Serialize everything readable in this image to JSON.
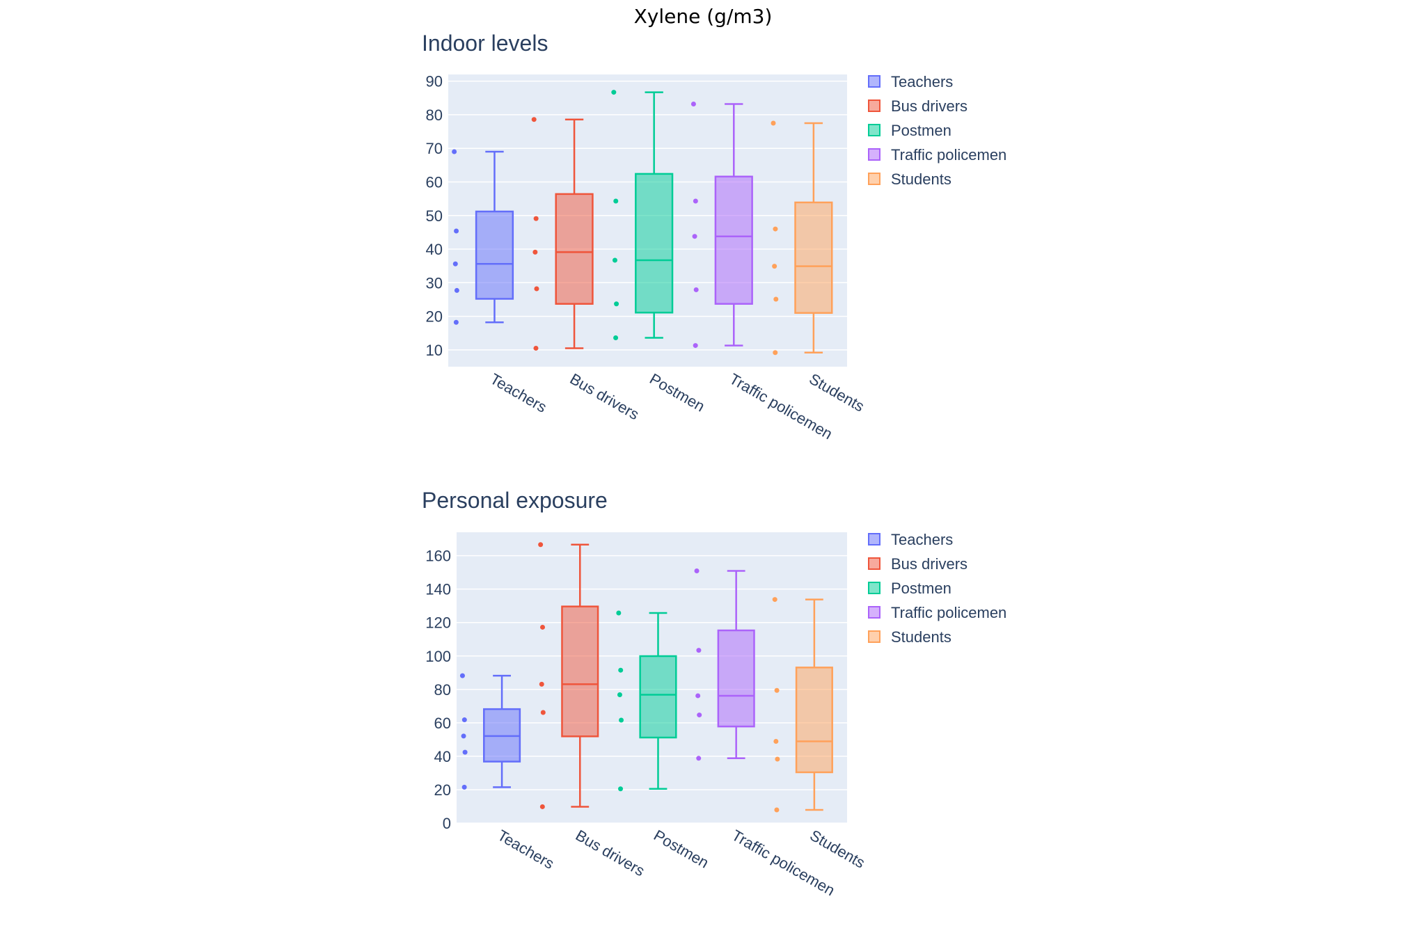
{
  "chart_data": {
    "title": "Xylene (g/m3)",
    "colors": {
      "Teachers": "#636efa",
      "Bus drivers": "#ef553b",
      "Postmen": "#00cc96",
      "Traffic policemen": "#ab63fa",
      "Students": "#ffa15a"
    },
    "plot_bg": "#e5ecf6",
    "panels": [
      {
        "type": "box",
        "title": "Indoor levels",
        "ylim": [
          5,
          92
        ],
        "yticks": [
          10,
          20,
          30,
          40,
          50,
          60,
          70,
          80,
          90
        ],
        "categories": [
          "Teachers",
          "Bus drivers",
          "Postmen",
          "Traffic policemen",
          "Students"
        ],
        "legend": [
          "Teachers",
          "Bus drivers",
          "Postmen",
          "Traffic policemen",
          "Students"
        ],
        "series": [
          {
            "name": "Teachers",
            "min": 18.2,
            "q1": 25.2,
            "median": 35.6,
            "q3": 51.2,
            "max": 69.0,
            "points": [
              69.0,
              45.4,
              35.6,
              27.7,
              18.2
            ]
          },
          {
            "name": "Bus drivers",
            "min": 10.5,
            "q1": 23.7,
            "median": 39.1,
            "q3": 56.4,
            "max": 78.6,
            "points": [
              78.6,
              49.1,
              39.1,
              28.2,
              10.5
            ]
          },
          {
            "name": "Postmen",
            "min": 13.6,
            "q1": 21.1,
            "median": 36.7,
            "q3": 62.4,
            "max": 86.7,
            "points": [
              86.7,
              54.3,
              36.7,
              23.7,
              13.6
            ]
          },
          {
            "name": "Traffic policemen",
            "min": 11.3,
            "q1": 23.7,
            "median": 43.8,
            "q3": 61.6,
            "max": 83.2,
            "points": [
              83.2,
              54.3,
              43.8,
              27.9,
              11.3
            ]
          },
          {
            "name": "Students",
            "min": 9.2,
            "q1": 21.0,
            "median": 34.9,
            "q3": 53.9,
            "max": 77.5,
            "points": [
              77.5,
              46.0,
              34.9,
              25.1,
              9.2
            ]
          }
        ]
      },
      {
        "type": "box",
        "title": "Personal exposure",
        "ylim": [
          0,
          174
        ],
        "yticks": [
          0,
          20,
          40,
          60,
          80,
          100,
          120,
          140,
          160
        ],
        "categories": [
          "Teachers",
          "Bus drivers",
          "Postmen",
          "Traffic policemen",
          "Students"
        ],
        "legend": [
          "Teachers",
          "Bus drivers",
          "Postmen",
          "Traffic policemen",
          "Students"
        ],
        "series": [
          {
            "name": "Teachers",
            "min": 21.5,
            "q1": 36.8,
            "median": 52.1,
            "q3": 68.2,
            "max": 88.2,
            "points": [
              88.2,
              61.8,
              52.1,
              42.4,
              21.5
            ]
          },
          {
            "name": "Bus drivers",
            "min": 9.8,
            "q1": 51.9,
            "median": 83.1,
            "q3": 129.6,
            "max": 166.6,
            "points": [
              166.6,
              117.2,
              83.1,
              66.2,
              9.8
            ]
          },
          {
            "name": "Postmen",
            "min": 20.5,
            "q1": 51.2,
            "median": 76.8,
            "q3": 99.9,
            "max": 125.7,
            "points": [
              125.7,
              91.5,
              76.8,
              61.6,
              20.5
            ]
          },
          {
            "name": "Traffic policemen",
            "min": 38.8,
            "q1": 57.8,
            "median": 76.2,
            "q3": 115.3,
            "max": 150.9,
            "points": [
              150.9,
              103.4,
              76.2,
              64.7,
              38.8
            ]
          },
          {
            "name": "Students",
            "min": 7.9,
            "q1": 30.4,
            "median": 48.9,
            "q3": 93.1,
            "max": 133.8,
            "points": [
              133.8,
              79.4,
              48.9,
              38.3,
              7.9
            ]
          }
        ]
      }
    ]
  }
}
